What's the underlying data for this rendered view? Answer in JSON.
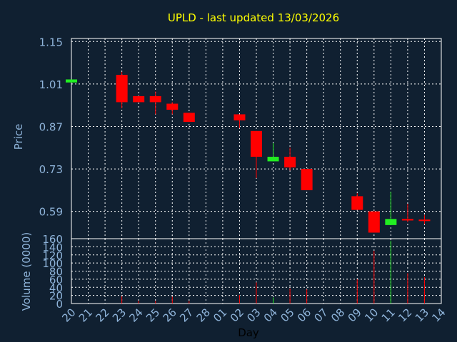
{
  "chart_data": {
    "type": "candlestick",
    "title": "UPLD - last updated 13/03/2026",
    "colors": {
      "background": "#102031",
      "title": "#ffff00",
      "axis_text": "#8fb4da",
      "grid": "#ffffff",
      "up": "#22ee22",
      "down": "#ff0000"
    },
    "price_panel": {
      "ylabel": "Price",
      "ylim": [
        0.5,
        1.16
      ],
      "ticks": [
        "1.15",
        "1.01",
        "0.87",
        "0.73",
        "0.59"
      ],
      "tick_values": [
        1.15,
        1.01,
        0.87,
        0.73,
        0.59
      ]
    },
    "volume_panel": {
      "ylabel": "Volume (0000)",
      "ylim": [
        0,
        160
      ],
      "ticks": [
        "160",
        "140",
        "120",
        "100",
        "80",
        "60",
        "40",
        "20",
        "0"
      ],
      "tick_values": [
        160,
        140,
        120,
        100,
        80,
        60,
        40,
        20,
        0
      ]
    },
    "xlabel": "Day",
    "categories": [
      "20",
      "21",
      "22",
      "23",
      "24",
      "25",
      "26",
      "27",
      "28",
      "01",
      "02",
      "03",
      "04",
      "05",
      "06",
      "07",
      "08",
      "09",
      "10",
      "11",
      "12",
      "13",
      "14"
    ],
    "candles": [
      {
        "day": "20",
        "open": 1.015,
        "high": 1.025,
        "low": 1.015,
        "close": 1.025,
        "volume": 0
      },
      {
        "day": "23",
        "open": 1.04,
        "high": 1.05,
        "low": 0.93,
        "close": 0.95,
        "volume": 18
      },
      {
        "day": "24",
        "open": 0.97,
        "high": 0.97,
        "low": 0.95,
        "close": 0.95,
        "volume": 7
      },
      {
        "day": "25",
        "open": 0.97,
        "high": 0.985,
        "low": 0.91,
        "close": 0.95,
        "volume": 6
      },
      {
        "day": "26",
        "open": 0.945,
        "high": 0.95,
        "low": 0.91,
        "close": 0.925,
        "volume": 17
      },
      {
        "day": "27",
        "open": 0.915,
        "high": 0.915,
        "low": 0.885,
        "close": 0.885,
        "volume": 6
      },
      {
        "day": "02",
        "open": 0.91,
        "high": 0.91,
        "low": 0.865,
        "close": 0.89,
        "volume": 21
      },
      {
        "day": "03",
        "open": 0.855,
        "high": 0.855,
        "low": 0.7,
        "close": 0.77,
        "volume": 52
      },
      {
        "day": "04",
        "open": 0.755,
        "high": 0.815,
        "low": 0.755,
        "close": 0.77,
        "volume": 15
      },
      {
        "day": "05",
        "open": 0.77,
        "high": 0.8,
        "low": 0.725,
        "close": 0.735,
        "volume": 37
      },
      {
        "day": "06",
        "open": 0.73,
        "high": 0.73,
        "low": 0.66,
        "close": 0.66,
        "volume": 35
      },
      {
        "day": "09",
        "open": 0.64,
        "high": 0.65,
        "low": 0.595,
        "close": 0.595,
        "volume": 60
      },
      {
        "day": "10",
        "open": 0.59,
        "high": 0.59,
        "low": 0.52,
        "close": 0.52,
        "volume": 130
      },
      {
        "day": "11",
        "open": 0.545,
        "high": 0.655,
        "low": 0.545,
        "close": 0.565,
        "volume": 155
      },
      {
        "day": "12",
        "open": 0.565,
        "high": 0.615,
        "low": 0.555,
        "close": 0.56,
        "volume": 75
      },
      {
        "day": "13",
        "open": 0.563,
        "high": 0.578,
        "low": 0.548,
        "close": 0.558,
        "volume": 65
      }
    ]
  }
}
